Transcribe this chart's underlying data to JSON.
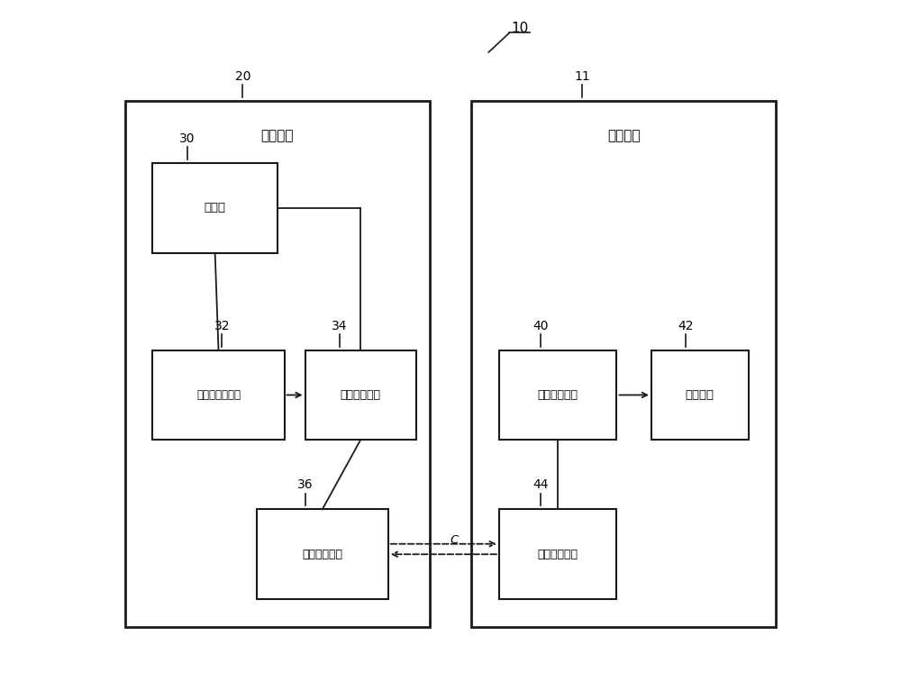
{
  "bg_color": "#ffffff",
  "fig_width": 10.0,
  "fig_height": 7.77,
  "label_10": "10",
  "label_20": "20",
  "label_11": "11",
  "label_30": "30",
  "label_32": "32",
  "label_34": "34",
  "label_36": "36",
  "label_40": "40",
  "label_42": "42",
  "label_44": "44",
  "label_C": "C",
  "text_camera_device": "相机装置",
  "text_terminal_device": "终端装置",
  "text_imaging_unit": "摄像部",
  "text_shoot_dir": "拍摄方向调整部",
  "text_camera_ctrl": "相机侧控制器",
  "text_camera_comm": "相机侧通信部",
  "text_terminal_ctrl": "终端侧控制器",
  "text_user_iface": "用户界面",
  "text_terminal_comm": "终端侧通信部",
  "line_color": "#1a1a1a",
  "box_color": "#ffffff"
}
